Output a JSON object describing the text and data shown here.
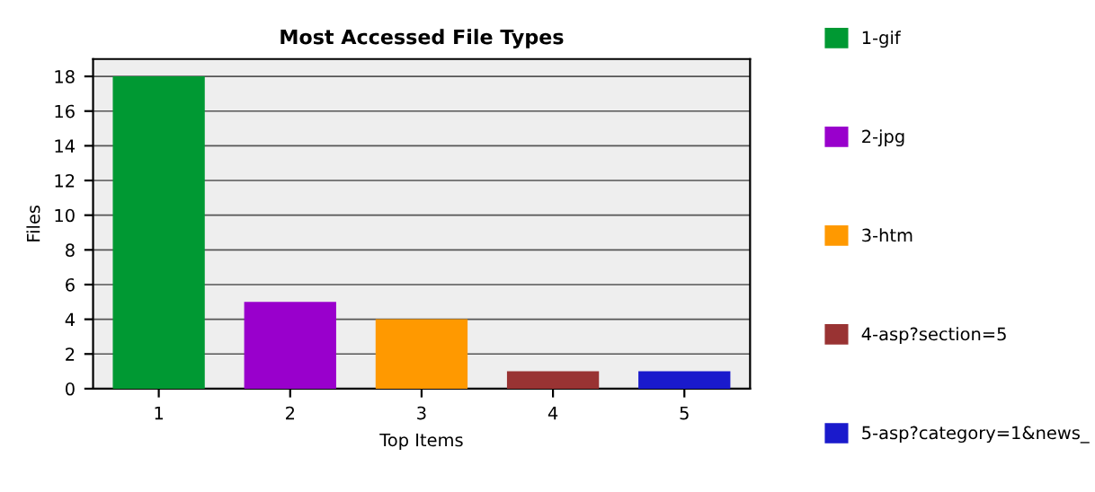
{
  "chart_data": {
    "type": "bar",
    "title": "Most Accessed File Types",
    "xlabel": "Top Items",
    "ylabel": "Files",
    "categories": [
      "1",
      "2",
      "3",
      "4",
      "5"
    ],
    "series": [
      {
        "name": "1-gif",
        "color": "#009933",
        "values": [
          18,
          null,
          null,
          null,
          null
        ]
      },
      {
        "name": "2-jpg",
        "color": "#9900cc",
        "values": [
          null,
          5,
          null,
          null,
          null
        ]
      },
      {
        "name": "3-htm",
        "color": "#ff9900",
        "values": [
          null,
          null,
          4,
          null,
          null
        ]
      },
      {
        "name": "4-asp?section=5",
        "color": "#993333",
        "values": [
          null,
          null,
          null,
          1,
          null
        ]
      },
      {
        "name": "5-asp?category=1&news_",
        "color": "#1a1acc",
        "values": [
          null,
          null,
          null,
          null,
          1
        ]
      }
    ],
    "ylim": [
      0,
      19
    ],
    "yticks": [
      0,
      2,
      4,
      6,
      8,
      10,
      12,
      14,
      16,
      18
    ],
    "grid": "y",
    "legend": "right"
  }
}
